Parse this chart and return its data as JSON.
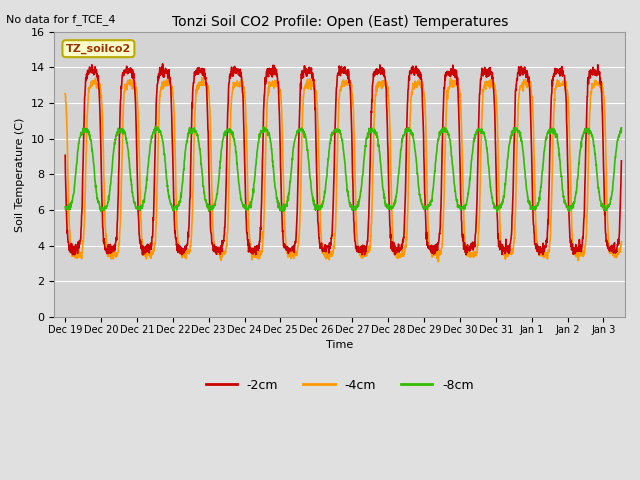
{
  "title": "Tonzi Soil CO2 Profile: Open (East) Temperatures",
  "subtitle": "No data for f_TCE_4",
  "ylabel": "Soil Temperature (C)",
  "xlabel": "Time",
  "ylim": [
    0,
    16
  ],
  "yticks": [
    0,
    2,
    4,
    6,
    8,
    10,
    12,
    14,
    16
  ],
  "legend_label": "TZ_soilco2",
  "series_labels": [
    "-2cm",
    "-4cm",
    "-8cm"
  ],
  "series_colors": [
    "#cc0000",
    "#ff9900",
    "#33bb00"
  ],
  "bg_color": "#e0e0e0",
  "plot_bg_color": "#d4d4d4",
  "xtick_labels": [
    "Dec 19",
    "Dec 20",
    "Dec 21",
    "Dec 22",
    "Dec 23",
    "Dec 24",
    "Dec 25",
    "Dec 26",
    "Dec 27",
    "Dec 28",
    "Dec 29",
    "Dec 30",
    "Dec 31",
    "Jan 1",
    "Jan 2",
    "Jan 3"
  ],
  "line_width": 1.2,
  "n_points": 2000,
  "n_days": 15.5,
  "amp_2cm": 5.0,
  "amp_4cm": 4.8,
  "amp_8cm": 2.2,
  "phase_2cm": 1.57,
  "phase_4cm": 1.1,
  "phase_8cm": 2.8,
  "base_2cm": 8.8,
  "base_4cm": 8.3,
  "base_8cm": 8.3,
  "sharpness": 3.0
}
